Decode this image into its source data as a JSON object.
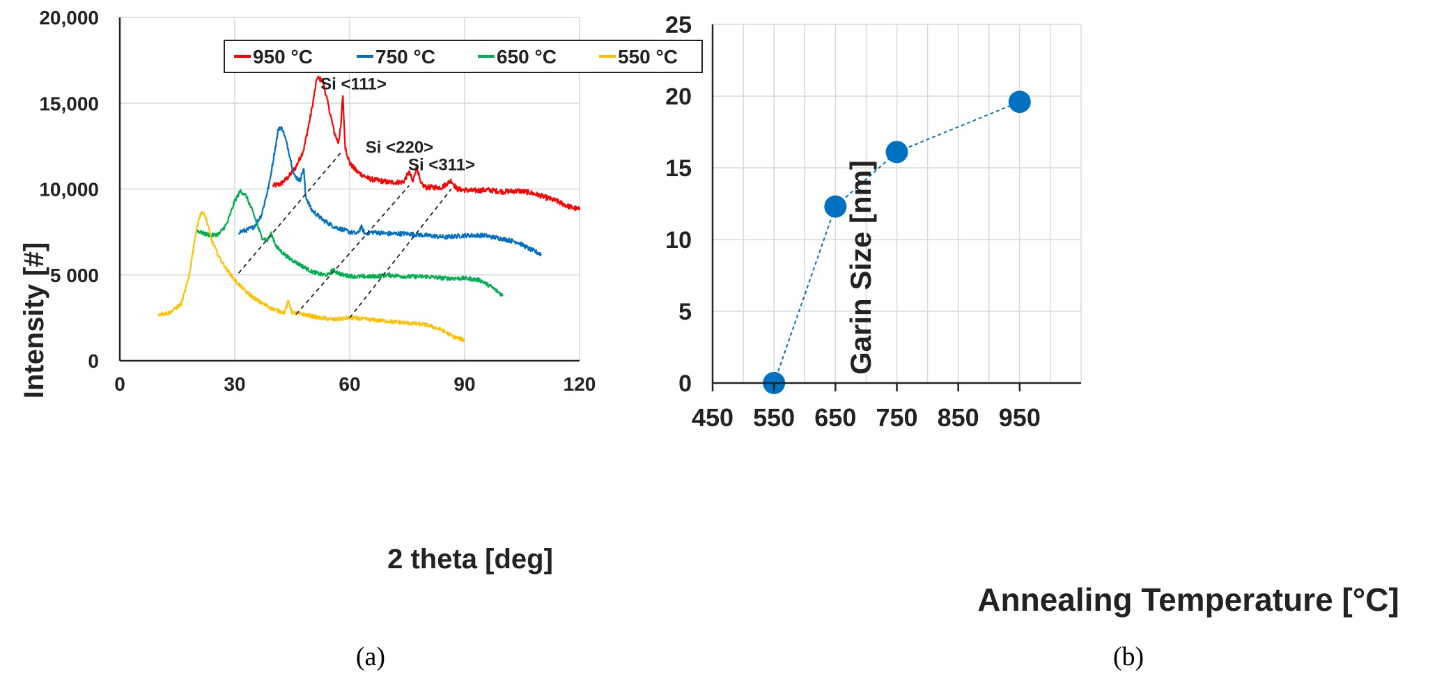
{
  "chart_data": [
    {
      "type": "line",
      "xlabel": "2 theta [deg]",
      "ylabel": "Intensity [#]",
      "xlim": [
        0,
        120
      ],
      "ylim": [
        0,
        20000
      ],
      "xticks": [
        "0",
        "30",
        "60",
        "90",
        "120"
      ],
      "yticks": [
        "0",
        "5 000",
        "10,000",
        "15,000",
        "20,000"
      ],
      "grid": true,
      "legend_position": "top",
      "series": [
        {
          "name": "950 °C",
          "color": "#ff0000",
          "noise": 150,
          "x": [
            40,
            42,
            44,
            46,
            48,
            50,
            51.5,
            53,
            54.5,
            56,
            57,
            57.7,
            58.2,
            58.8,
            60,
            62,
            65,
            70,
            74,
            75.5,
            76.5,
            77.5,
            78.5,
            80,
            84,
            86.5,
            88,
            92,
            96,
            100,
            104,
            107,
            110,
            114,
            117,
            120
          ],
          "y": [
            10200,
            10300,
            10700,
            11300,
            12300,
            14500,
            16500,
            16300,
            14800,
            13300,
            12700,
            13600,
            15600,
            12500,
            11500,
            11000,
            10600,
            10400,
            10400,
            11000,
            10400,
            11400,
            10300,
            10100,
            10100,
            10500,
            10000,
            9900,
            9950,
            9850,
            9900,
            9800,
            9600,
            9300,
            9000,
            8800
          ]
        },
        {
          "name": "750 °C",
          "color": "#0070c0",
          "noise": 130,
          "x": [
            31,
            33,
            35,
            37,
            39,
            40.5,
            41.5,
            42.5,
            44,
            45.5,
            47,
            48,
            48.5,
            50,
            53,
            56,
            60,
            62,
            63,
            64,
            66,
            70,
            75,
            80,
            85,
            90,
            95,
            100,
            104,
            107,
            110
          ],
          "y": [
            7500,
            7600,
            7800,
            8500,
            10300,
            12300,
            13600,
            13500,
            12300,
            10800,
            10500,
            11200,
            9600,
            8800,
            8200,
            7800,
            7500,
            7400,
            7800,
            7400,
            7500,
            7400,
            7400,
            7300,
            7200,
            7300,
            7300,
            7100,
            6900,
            6500,
            6200
          ]
        },
        {
          "name": "650 °C",
          "color": "#00b050",
          "noise": 120,
          "x": [
            20,
            22,
            24,
            26,
            28,
            30,
            31.5,
            33,
            35,
            37,
            38.5,
            39.5,
            41,
            44,
            47,
            50,
            53,
            54.5,
            55.5,
            58,
            62,
            66,
            70,
            75,
            80,
            85,
            90,
            94,
            97,
            100
          ],
          "y": [
            7600,
            7400,
            7300,
            7400,
            8000,
            9300,
            9900,
            9600,
            8500,
            7200,
            7000,
            7400,
            6600,
            6000,
            5600,
            5200,
            5000,
            5000,
            5300,
            5000,
            4900,
            4900,
            5000,
            4900,
            4900,
            4800,
            4800,
            4700,
            4300,
            3800
          ]
        },
        {
          "name": "550 °C",
          "color": "#ffc000",
          "noise": 110,
          "x": [
            10,
            13,
            16,
            18,
            19.5,
            20.5,
            21.5,
            22.5,
            24,
            26,
            28,
            30,
            33,
            36,
            40,
            43,
            44,
            45,
            48,
            52,
            56,
            60,
            65,
            70,
            75,
            80,
            84,
            87,
            90
          ],
          "y": [
            2700,
            2800,
            3300,
            4800,
            7000,
            8200,
            8700,
            8300,
            7000,
            6000,
            5300,
            4700,
            4000,
            3500,
            3000,
            2800,
            3500,
            2800,
            2700,
            2500,
            2400,
            2500,
            2400,
            2300,
            2200,
            2100,
            1800,
            1400,
            1200
          ]
        }
      ],
      "guides": [
        {
          "from": [
            31,
            5100
          ],
          "to": [
            58,
            12200
          ]
        },
        {
          "from": [
            46,
            2700
          ],
          "to": [
            75.5,
            10200
          ]
        },
        {
          "from": [
            60,
            2500
          ],
          "to": [
            86.5,
            10000
          ]
        }
      ],
      "annotations": [
        {
          "text": "Si <111>",
          "x": 61,
          "y": 15800
        },
        {
          "text": "Si <220>",
          "x": 73,
          "y": 12100
        },
        {
          "text": "Si <311>",
          "x": 84,
          "y": 11100
        }
      ],
      "caption": "(a)"
    },
    {
      "type": "line",
      "xlabel": "Annealing Temperature [°C]",
      "ylabel": "Garin Size [nm]",
      "xlim": [
        450,
        1050
      ],
      "ylim": [
        0,
        25
      ],
      "xticks": [
        "450",
        "550",
        "650",
        "750",
        "850",
        "950"
      ],
      "yticks": [
        "0",
        "5",
        "10",
        "15",
        "20",
        "25"
      ],
      "grid": true,
      "series": [
        {
          "name": "Grain size",
          "color": "#0070c0",
          "x": [
            550,
            650,
            750,
            950
          ],
          "y": [
            0,
            12.3,
            16.1,
            19.6
          ]
        }
      ],
      "caption": "(b)"
    }
  ]
}
